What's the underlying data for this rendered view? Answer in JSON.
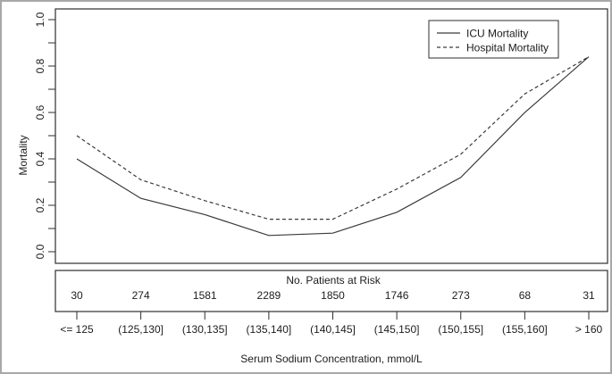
{
  "figure": {
    "background": "#ffffff",
    "frame_color": "#2e2e2e",
    "line_color": "#3a3a3a",
    "text_color": "#1c1c1c",
    "outer_border_color": "#a8a8a8"
  },
  "chart_data": {
    "type": "line",
    "title": "",
    "xlabel": "Serum Sodium Concentration, mmol/L",
    "ylabel": "Mortality",
    "categories": [
      "<= 125",
      "(125,130]",
      "(130,135]",
      "(135,140]",
      "(140,145]",
      "(145,150]",
      "(150,155]",
      "(155,160]",
      "> 160"
    ],
    "series": [
      {
        "name": "ICU Mortality",
        "style": "solid",
        "values": [
          0.4,
          0.23,
          0.16,
          0.07,
          0.08,
          0.17,
          0.32,
          0.6,
          0.84
        ]
      },
      {
        "name": "Hospital Mortality",
        "style": "dashed",
        "values": [
          0.5,
          0.31,
          0.22,
          0.14,
          0.14,
          0.27,
          0.42,
          0.68,
          0.84
        ]
      }
    ],
    "ylim": [
      0.0,
      1.0
    ],
    "y_major_ticks": [
      0.0,
      0.2,
      0.4,
      0.6,
      0.8,
      1.0
    ],
    "y_minor_step": 0.1,
    "grid": false,
    "legend_position": "top-right",
    "risk_table": {
      "title": "No. Patients at Risk",
      "counts": [
        "30",
        "274",
        "1581",
        "2289",
        "1850",
        "1746",
        "273",
        "68",
        "31"
      ]
    }
  }
}
